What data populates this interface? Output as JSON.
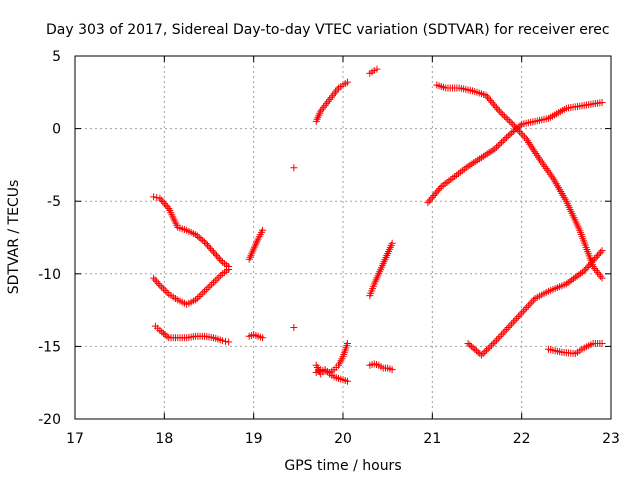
{
  "chart_data": {
    "type": "scatter",
    "title": "Day 303 of 2017, Sidereal Day-to-day VTEC variation (SDTVAR) for receiver erec",
    "xlabel": "GPS time / hours",
    "ylabel": "SDTVAR / TECUs",
    "xlim": [
      17,
      23
    ],
    "ylim": [
      -20,
      5
    ],
    "x_ticks": [
      17,
      18,
      19,
      20,
      21,
      22,
      23
    ],
    "x_tick_labels": [
      "17",
      "18",
      "19",
      "20",
      "21",
      "22",
      "23"
    ],
    "y_ticks": [
      -20,
      -15,
      -10,
      -5,
      0,
      5
    ],
    "y_tick_labels": [
      "-20",
      "-15",
      "-10",
      "-5",
      "0",
      "5"
    ],
    "grid": true,
    "legend": "none",
    "marker": "plus",
    "color": "#ff0000",
    "series": [
      {
        "x": [
          17.88,
          17.95,
          18.05,
          18.15,
          18.25,
          18.35,
          18.45,
          18.55,
          18.65,
          18.72
        ],
        "y": [
          -4.7,
          -4.8,
          -5.5,
          -6.8,
          -7.0,
          -7.3,
          -7.8,
          -8.5,
          -9.2,
          -9.5
        ]
      },
      {
        "x": [
          17.88,
          17.95,
          18.05,
          18.15,
          18.25,
          18.35,
          18.45,
          18.55,
          18.65,
          18.72
        ],
        "y": [
          -10.3,
          -10.8,
          -11.4,
          -11.8,
          -12.1,
          -11.8,
          -11.2,
          -10.6,
          -10.0,
          -9.7
        ]
      },
      {
        "x": [
          17.9,
          17.95,
          18.05,
          18.15,
          18.25,
          18.35,
          18.45,
          18.55,
          18.65,
          18.72
        ],
        "y": [
          -13.6,
          -13.9,
          -14.4,
          -14.4,
          -14.4,
          -14.3,
          -14.3,
          -14.4,
          -14.6,
          -14.7
        ]
      },
      {
        "x": [
          18.95,
          19.0,
          19.05,
          19.1
        ],
        "y": [
          -9.0,
          -8.3,
          -7.6,
          -7.0
        ]
      },
      {
        "x": [
          18.95,
          19.0,
          19.05,
          19.1
        ],
        "y": [
          -14.3,
          -14.2,
          -14.3,
          -14.4
        ]
      },
      {
        "x": [
          19.45
        ],
        "y": [
          -2.7
        ]
      },
      {
        "x": [
          19.45
        ],
        "y": [
          -13.7
        ]
      },
      {
        "x": [
          19.7,
          19.75,
          19.8,
          19.85,
          19.9,
          19.95,
          20.0,
          20.05
        ],
        "y": [
          0.5,
          1.2,
          1.6,
          2.0,
          2.4,
          2.8,
          3.0,
          3.2
        ]
      },
      {
        "x": [
          20.3,
          20.35,
          20.38
        ],
        "y": [
          3.8,
          4.0,
          4.1
        ]
      },
      {
        "x": [
          19.7,
          19.75,
          19.8,
          19.85,
          19.9,
          19.95,
          20.0,
          20.05
        ],
        "y": [
          -16.3,
          -16.9,
          -16.6,
          -16.9,
          -17.1,
          -17.2,
          -17.3,
          -17.4
        ]
      },
      {
        "x": [
          19.7,
          19.75,
          19.8,
          19.85,
          19.9,
          19.95,
          20.0,
          20.05
        ],
        "y": [
          -16.8,
          -16.6,
          -16.7,
          -16.8,
          -16.6,
          -16.3,
          -15.7,
          -14.8
        ]
      },
      {
        "x": [
          20.3,
          20.35,
          20.4,
          20.45,
          20.5,
          20.55
        ],
        "y": [
          -11.5,
          -10.7,
          -10.0,
          -9.3,
          -8.6,
          -7.9
        ]
      },
      {
        "x": [
          20.3,
          20.35,
          20.4,
          20.45,
          20.5,
          20.55
        ],
        "y": [
          -16.3,
          -16.2,
          -16.3,
          -16.5,
          -16.5,
          -16.6
        ]
      },
      {
        "x": [
          20.95,
          21.1,
          21.25,
          21.4,
          21.55,
          21.7,
          21.85,
          22.0,
          22.15,
          22.3,
          22.5,
          22.7,
          22.9
        ],
        "y": [
          -5.1,
          -4.0,
          -3.3,
          -2.6,
          -2.0,
          -1.4,
          -0.5,
          0.3,
          0.5,
          0.7,
          1.4,
          1.6,
          1.8
        ]
      },
      {
        "x": [
          21.05,
          21.15,
          21.3,
          21.45,
          21.6,
          21.75,
          21.9,
          22.05,
          22.2,
          22.35,
          22.5,
          22.65,
          22.8,
          22.9
        ],
        "y": [
          3.0,
          2.8,
          2.8,
          2.6,
          2.3,
          1.2,
          0.3,
          -0.7,
          -2.1,
          -3.4,
          -5.0,
          -7.0,
          -9.5,
          -10.3
        ]
      },
      {
        "x": [
          21.4,
          21.55,
          21.7,
          21.85,
          22.0,
          22.15,
          22.3,
          22.5,
          22.7,
          22.9
        ],
        "y": [
          -14.8,
          -15.6,
          -14.7,
          -13.7,
          -12.7,
          -11.7,
          -11.2,
          -10.7,
          -9.8,
          -8.4
        ]
      },
      {
        "x": [
          22.3,
          22.45,
          22.6,
          22.7,
          22.8,
          22.9
        ],
        "y": [
          -15.2,
          -15.4,
          -15.5,
          -15.1,
          -14.8,
          -14.8
        ]
      }
    ]
  }
}
